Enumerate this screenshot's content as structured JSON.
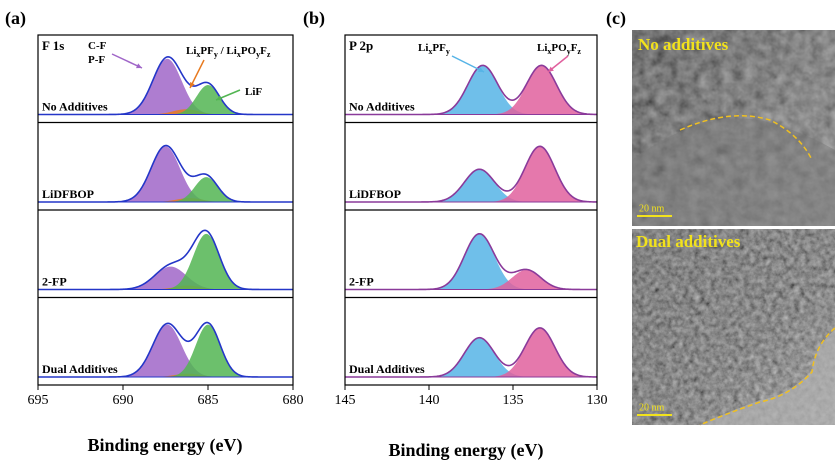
{
  "chart_data": [
    {
      "type": "peaks",
      "panel_label": "(a)",
      "core_level": "F 1s",
      "xlabel": "Binding energy (eV)",
      "xlim": [
        695,
        680
      ],
      "xticks": [
        695,
        690,
        685,
        680
      ],
      "ylim": [
        0,
        1
      ],
      "envelope_color": "#2436c8",
      "rows": [
        {
          "label": "No Additives",
          "components": [
            {
              "center": 687.4,
              "height": 0.85,
              "fwhm": 2.0,
              "color": "#a066c8"
            },
            {
              "center": 686.3,
              "height": 0.08,
              "fwhm": 1.8,
              "color": "#e87a20"
            },
            {
              "center": 685.0,
              "height": 0.45,
              "fwhm": 1.6,
              "color": "#52b552"
            }
          ]
        },
        {
          "label": "LiDFBOP",
          "components": [
            {
              "center": 687.5,
              "height": 0.85,
              "fwhm": 2.0,
              "color": "#a066c8"
            },
            {
              "center": 686.1,
              "height": 0.06,
              "fwhm": 1.8,
              "color": "#e87a20"
            },
            {
              "center": 685.1,
              "height": 0.38,
              "fwhm": 1.6,
              "color": "#52b552"
            }
          ]
        },
        {
          "label": "2-FP",
          "components": [
            {
              "center": 687.2,
              "height": 0.35,
              "fwhm": 2.2,
              "color": "#a066c8"
            },
            {
              "center": 686.2,
              "height": 0.06,
              "fwhm": 1.8,
              "color": "#e87a20"
            },
            {
              "center": 685.1,
              "height": 0.85,
              "fwhm": 1.8,
              "color": "#52b552"
            }
          ]
        },
        {
          "label": "Dual Additives",
          "components": [
            {
              "center": 687.4,
              "height": 0.8,
              "fwhm": 2.0,
              "color": "#a066c8"
            },
            {
              "center": 686.2,
              "height": 0.05,
              "fwhm": 1.8,
              "color": "#e87a20"
            },
            {
              "center": 685.0,
              "height": 0.8,
              "fwhm": 1.7,
              "color": "#52b552"
            }
          ]
        }
      ],
      "annotations": [
        {
          "parts": [
            {
              "text": "C-F"
            }
          ]
        },
        {
          "parts": [
            {
              "text": "P-F"
            }
          ]
        },
        {
          "parts": [
            {
              "text": "Li"
            },
            {
              "sub": "x"
            },
            {
              "text": "PF"
            },
            {
              "sub": "y"
            },
            {
              "text": " / Li"
            },
            {
              "sub": "x"
            },
            {
              "text": "PO"
            },
            {
              "sub": "y"
            },
            {
              "text": "F"
            },
            {
              "sub": "z"
            }
          ]
        },
        {
          "parts": [
            {
              "text": "LiF"
            }
          ]
        }
      ]
    },
    {
      "type": "peaks",
      "panel_label": "(b)",
      "core_level": "P 2p",
      "xlabel": "Binding energy (eV)",
      "xlim": [
        145,
        130
      ],
      "xticks": [
        145,
        140,
        135,
        130
      ],
      "ylim": [
        0,
        1
      ],
      "envelope_color": "#8a3a9a",
      "rows": [
        {
          "label": "No Additives",
          "components": [
            {
              "center": 136.8,
              "height": 0.75,
              "fwhm": 2.1,
              "color": "#56b4e6"
            },
            {
              "center": 133.3,
              "height": 0.75,
              "fwhm": 2.1,
              "color": "#e0609e"
            }
          ]
        },
        {
          "label": "LiDFBOP",
          "components": [
            {
              "center": 137.0,
              "height": 0.5,
              "fwhm": 2.1,
              "color": "#56b4e6"
            },
            {
              "center": 133.4,
              "height": 0.85,
              "fwhm": 2.1,
              "color": "#e0609e"
            }
          ]
        },
        {
          "label": "2-FP",
          "components": [
            {
              "center": 137.0,
              "height": 0.85,
              "fwhm": 2.1,
              "color": "#56b4e6"
            },
            {
              "center": 134.2,
              "height": 0.3,
              "fwhm": 2.0,
              "color": "#e0609e"
            }
          ]
        },
        {
          "label": "Dual Additives",
          "components": [
            {
              "center": 137.0,
              "height": 0.6,
              "fwhm": 2.1,
              "color": "#56b4e6"
            },
            {
              "center": 133.4,
              "height": 0.75,
              "fwhm": 2.1,
              "color": "#e0609e"
            }
          ]
        }
      ],
      "annotations": [
        {
          "parts": [
            {
              "text": "Li"
            },
            {
              "sub": "x"
            },
            {
              "text": "PF"
            },
            {
              "sub": "y"
            }
          ]
        },
        {
          "parts": [
            {
              "text": "Li"
            },
            {
              "sub": "x"
            },
            {
              "text": "PO"
            },
            {
              "sub": "y"
            },
            {
              "text": "F"
            },
            {
              "sub": "z"
            }
          ]
        }
      ]
    }
  ],
  "images": {
    "panel_label": "(c)",
    "items": [
      {
        "label": "No additives",
        "scale_bar": "20 nm"
      },
      {
        "label": "Dual additives",
        "scale_bar": "20 nm"
      }
    ]
  }
}
